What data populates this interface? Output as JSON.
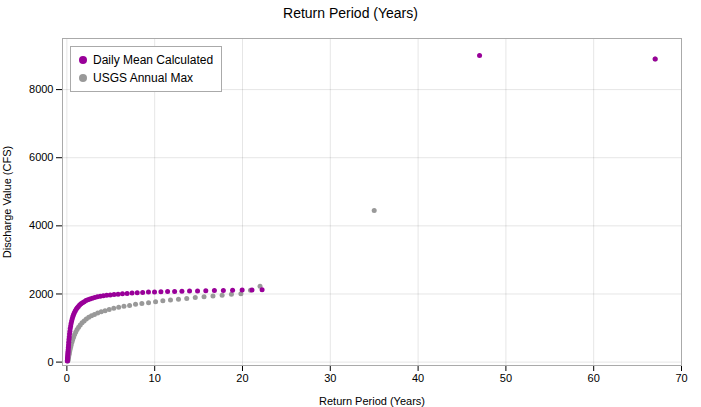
{
  "chart_data": {
    "type": "scatter",
    "title": "Return Period (Years)",
    "xlabel": "Return Period (Years)",
    "ylabel": "Discharge Value (CFS)",
    "series": [
      {
        "name": "Daily Mean Calculated",
        "color": "#990099",
        "x": [
          0.05,
          0.06,
          0.07,
          0.08,
          0.09,
          0.1,
          0.11,
          0.12,
          0.13,
          0.15,
          0.17,
          0.19,
          0.21,
          0.24,
          0.27,
          0.3,
          0.34,
          0.38,
          0.43,
          0.48,
          0.54,
          0.61,
          0.68,
          0.76,
          0.85,
          0.95,
          1.06,
          1.18,
          1.31,
          1.45,
          1.61,
          1.78,
          1.97,
          2.17,
          2.39,
          2.63,
          2.89,
          3.17,
          3.47,
          3.8,
          4.15,
          4.53,
          4.94,
          5.37,
          5.83,
          6.33,
          6.86,
          7.42,
          8.01,
          8.63,
          9.29,
          9.98,
          10.71,
          11.47,
          12.27,
          13.1,
          13.97,
          14.88,
          15.82,
          16.8,
          17.82,
          18.87,
          19.96,
          21.08,
          22.23,
          47.0,
          67.0
        ],
        "values": [
          30,
          50,
          75,
          105,
          140,
          180,
          220,
          265,
          310,
          370,
          435,
          505,
          580,
          660,
          740,
          825,
          905,
          985,
          1060,
          1135,
          1205,
          1270,
          1335,
          1395,
          1450,
          1500,
          1550,
          1595,
          1635,
          1675,
          1710,
          1745,
          1775,
          1805,
          1830,
          1855,
          1875,
          1895,
          1915,
          1930,
          1945,
          1960,
          1972,
          1985,
          1995,
          2005,
          2015,
          2025,
          2035,
          2045,
          2055,
          2060,
          2065,
          2070,
          2075,
          2080,
          2085,
          2090,
          2095,
          2100,
          2105,
          2110,
          2115,
          2120,
          2125,
          9000,
          8900
        ]
      },
      {
        "name": "USGS Annual Max",
        "color": "#999999",
        "x": [
          0.1,
          0.12,
          0.14,
          0.17,
          0.2,
          0.23,
          0.27,
          0.31,
          0.36,
          0.42,
          0.49,
          0.57,
          0.66,
          0.76,
          0.88,
          1.01,
          1.16,
          1.33,
          1.52,
          1.73,
          1.96,
          2.21,
          2.49,
          2.8,
          3.14,
          3.51,
          3.91,
          4.35,
          4.82,
          5.34,
          5.9,
          6.5,
          7.14,
          7.82,
          8.54,
          9.3,
          10.1,
          10.93,
          11.8,
          12.71,
          13.65,
          14.62,
          15.62,
          16.64,
          17.68,
          18.74,
          19.82,
          20.91,
          22.0,
          35.0,
          67.0
        ],
        "values": [
          30,
          55,
          85,
          120,
          160,
          205,
          255,
          310,
          370,
          435,
          505,
          580,
          655,
          730,
          810,
          885,
          955,
          1025,
          1090,
          1155,
          1210,
          1265,
          1315,
          1360,
          1400,
          1440,
          1475,
          1510,
          1545,
          1580,
          1610,
          1640,
          1665,
          1695,
          1720,
          1745,
          1770,
          1800,
          1825,
          1845,
          1870,
          1900,
          1920,
          1940,
          1960,
          1990,
          2010,
          2110,
          2230,
          4450,
          8900
        ]
      }
    ],
    "xlim": [
      -0.5,
      70
    ],
    "ylim": [
      -100,
      9500
    ],
    "xticks": [
      0,
      10,
      20,
      30,
      40,
      50,
      60,
      70
    ],
    "yticks": [
      0,
      2000,
      4000,
      6000,
      8000
    ],
    "grid": true,
    "legend": "upper left",
    "marker": "circle"
  }
}
